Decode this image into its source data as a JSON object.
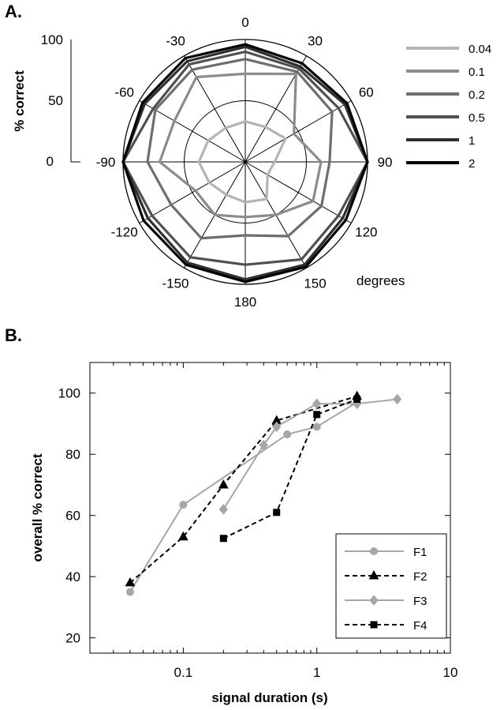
{
  "chart_data": [
    {
      "panel_label": "A.",
      "type": "polar_line",
      "ylabel": "% correct",
      "rlim": [
        0,
        100
      ],
      "r_ticks": [
        "0",
        "50",
        "100"
      ],
      "angles": [
        0,
        30,
        60,
        90,
        120,
        150,
        180,
        -150,
        -120,
        -90,
        -60,
        -30
      ],
      "angle_labels": [
        "0",
        "30",
        "60",
        "90",
        "120",
        "150",
        "180",
        "-150",
        "-120",
        "-90",
        "-60",
        "-30"
      ],
      "angle_unit_label": "degrees",
      "grid": true,
      "legend_position": "right",
      "series": [
        {
          "name": "0.04",
          "color": "#b4b4b4",
          "values": [
            33,
            33,
            38,
            24,
            21,
            35,
            33,
            31,
            34,
            38,
            35,
            32
          ]
        },
        {
          "name": "0.1",
          "color": "#8c8c8c",
          "values": [
            72,
            83,
            46,
            62,
            64,
            50,
            45,
            50,
            47,
            70,
            67,
            80
          ]
        },
        {
          "name": "0.2",
          "color": "#6e6e6e",
          "values": [
            84,
            85,
            82,
            69,
            72,
            70,
            60,
            72,
            70,
            80,
            85,
            87
          ]
        },
        {
          "name": "0.5",
          "color": "#505050",
          "values": [
            90,
            88,
            88,
            100,
            88,
            92,
            84,
            90,
            88,
            100,
            87,
            92
          ]
        },
        {
          "name": "1",
          "color": "#2e2e2e",
          "values": [
            94,
            90,
            94,
            100,
            92,
            97,
            96,
            95,
            92,
            100,
            95,
            95
          ]
        },
        {
          "name": "2",
          "color": "#000000",
          "values": [
            96,
            93,
            96,
            100,
            95,
            99,
            98,
            97,
            96,
            100,
            97,
            98
          ]
        }
      ]
    },
    {
      "panel_label": "B.",
      "type": "line",
      "xlabel": "signal duration (s)",
      "ylabel": "overall % correct",
      "xscale": "log",
      "xlim": [
        0.02,
        10
      ],
      "ylim": [
        15,
        110
      ],
      "x_ticks": [
        0.1,
        1,
        10
      ],
      "x_tick_labels": [
        "0.1",
        "1",
        "10"
      ],
      "y_ticks": [
        20,
        40,
        60,
        80,
        100
      ],
      "y_tick_labels": [
        "20",
        "40",
        "60",
        "80",
        "100"
      ],
      "grid": false,
      "legend_position": "bottom-right",
      "series": [
        {
          "name": "F1",
          "color": "#a6a6a6",
          "dash": "solid",
          "marker": "circle",
          "x": [
            0.04,
            0.1,
            0.6,
            1,
            2
          ],
          "y": [
            35,
            63.5,
            86.5,
            89,
            97
          ]
        },
        {
          "name": "F2",
          "color": "#000000",
          "dash": "dashed",
          "marker": "triangle",
          "x": [
            0.04,
            0.1,
            0.2,
            0.5,
            2
          ],
          "y": [
            38,
            53,
            70,
            91,
            99
          ]
        },
        {
          "name": "F3",
          "color": "#a6a6a6",
          "dash": "solid",
          "marker": "diamond",
          "x": [
            0.2,
            0.4,
            0.5,
            1,
            2,
            4
          ],
          "y": [
            62,
            83,
            89,
            96.5,
            96.5,
            98
          ]
        },
        {
          "name": "F4",
          "color": "#000000",
          "dash": "dashed",
          "marker": "square",
          "x": [
            0.2,
            0.5,
            1,
            2
          ],
          "y": [
            52.5,
            61,
            93,
            98
          ]
        }
      ]
    }
  ]
}
